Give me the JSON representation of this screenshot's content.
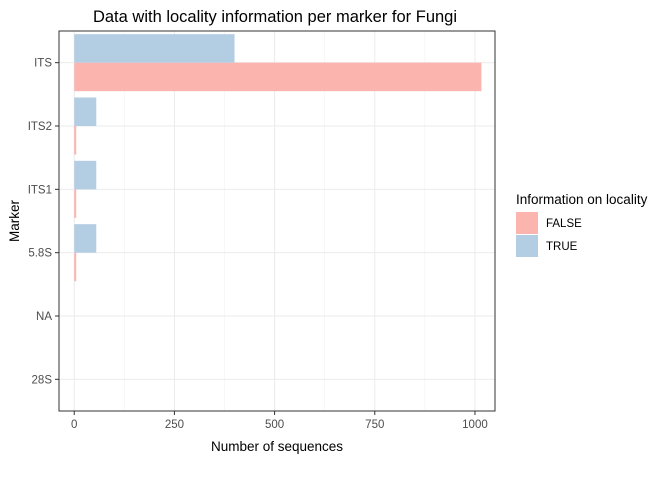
{
  "chart_data": {
    "type": "bar",
    "orientation": "horizontal",
    "title": "Data with locality information per marker for Fungi",
    "xlabel": "Number of sequences",
    "ylabel": "Marker",
    "categories": [
      "ITS",
      "ITS2",
      "ITS1",
      "5.8S",
      "NA",
      "28S"
    ],
    "series": [
      {
        "name": "FALSE",
        "color": "#FBB4AE",
        "values": [
          1016,
          5,
          5,
          5,
          0,
          0
        ]
      },
      {
        "name": "TRUE",
        "color": "#B3CDE3",
        "values": [
          400,
          55,
          55,
          55,
          0,
          0
        ]
      }
    ],
    "xlim": [
      -38,
      1050
    ],
    "xticks": [
      0,
      250,
      500,
      750,
      1000
    ],
    "xtick_labels": [
      "0",
      "250",
      "500",
      "750",
      "1000"
    ],
    "grid": true,
    "legend": {
      "title": "Information on locality",
      "position": "right",
      "entries": [
        "FALSE",
        "TRUE"
      ]
    }
  }
}
